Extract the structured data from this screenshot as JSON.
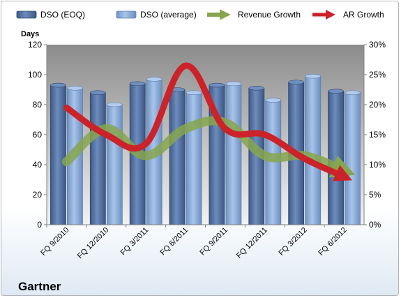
{
  "chart_data": {
    "type": "bar",
    "categories": [
      "FQ 9/2010",
      "FQ 12/2010",
      "FQ 3/2011",
      "FQ 6/2011",
      "FQ 9/2011",
      "FQ 12/2011",
      "FQ 3/2012",
      "FQ 6/2012"
    ],
    "series": [
      {
        "name": "DSO (EOQ)",
        "type": "bar",
        "axis": "left",
        "color": "#4f6fa0",
        "values": [
          93,
          88,
          94,
          90,
          93,
          91,
          95,
          89
        ]
      },
      {
        "name": "DSO (average)",
        "type": "bar",
        "axis": "left",
        "color": "#87a8d8",
        "values": [
          91,
          80,
          97,
          88,
          94,
          83,
          99,
          88
        ]
      },
      {
        "name": "Revenue Growth",
        "type": "line",
        "axis": "right",
        "color": "#86a64e",
        "unit": "%",
        "values": [
          10.5,
          16.0,
          11.5,
          16.0,
          17.0,
          11.5,
          11.5,
          9.0
        ]
      },
      {
        "name": "AR Growth",
        "type": "line",
        "axis": "right",
        "color": "#cc2229",
        "unit": "%",
        "values": [
          19.5,
          15.0,
          13.5,
          26.5,
          16.0,
          15.0,
          11.0,
          8.0
        ]
      }
    ],
    "ylabel": "Days",
    "ylim": [
      0,
      120
    ],
    "yticks": [
      "0",
      "20",
      "40",
      "60",
      "80",
      "100",
      "120"
    ],
    "y2lim": [
      0,
      30
    ],
    "y2ticks": [
      "0%",
      "5%",
      "10%",
      "15%",
      "20%",
      "25%",
      "30%"
    ],
    "legend": "top",
    "grid": false,
    "company": "Gartner"
  }
}
